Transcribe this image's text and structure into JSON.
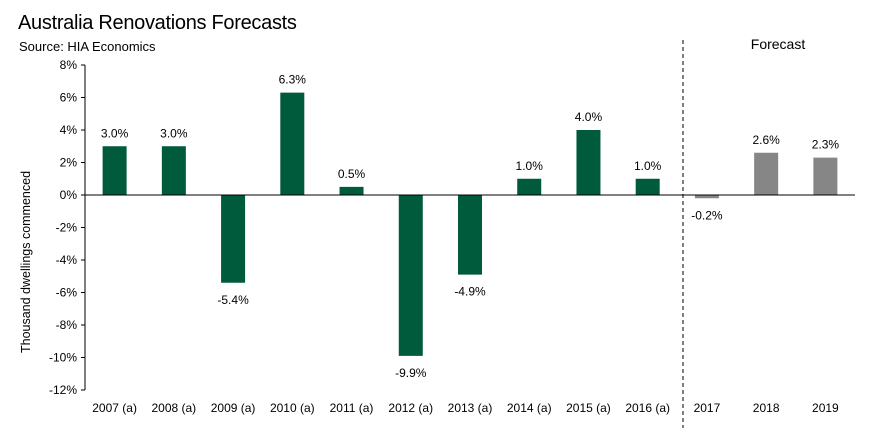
{
  "chart_data": {
    "type": "bar",
    "title": "Australia Renovations Forecasts",
    "subtitle": "Source: HIA Economics",
    "ylabel": "Thousand dwellings commenced",
    "xlabel": "",
    "ylim": [
      -12,
      8
    ],
    "ytick_step": 2,
    "ytick_labels": [
      "8%",
      "6%",
      "4%",
      "2%",
      "0%",
      "-2%",
      "-4%",
      "-6%",
      "-8%",
      "-10%",
      "-12%"
    ],
    "forecast_label": "Forecast",
    "forecast_start_index": 10,
    "categories": [
      "2007 (a)",
      "2008 (a)",
      "2009 (a)",
      "2010 (a)",
      "2011 (a)",
      "2012 (a)",
      "2013 (a)",
      "2014 (a)",
      "2015 (a)",
      "2016 (a)",
      "2017",
      "2018",
      "2019"
    ],
    "values": [
      3.0,
      3.0,
      -5.4,
      6.3,
      0.5,
      -9.9,
      -4.9,
      1.0,
      4.0,
      1.0,
      -0.2,
      2.6,
      2.3
    ],
    "data_labels": [
      "3.0%",
      "3.0%",
      "-5.4%",
      "6.3%",
      "0.5%",
      "-9.9%",
      "-4.9%",
      "1.0%",
      "4.0%",
      "1.0%",
      "-0.2%",
      "2.6%",
      "2.3%"
    ],
    "colors": {
      "actual": "#005a3c",
      "forecast": "#868686"
    }
  }
}
